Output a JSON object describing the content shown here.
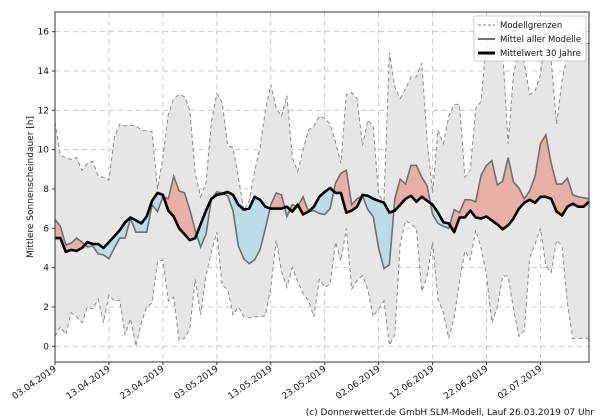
{
  "chart_data": {
    "type": "area",
    "title": "",
    "ylabel": "Mittlere Sonnenscheindauer [h]",
    "xlabel": "",
    "ylim": [
      -0.8,
      17
    ],
    "xlim_days": [
      0,
      99
    ],
    "grid": true,
    "legend_placement": "top-right",
    "y_ticks": [
      0,
      2,
      4,
      6,
      8,
      10,
      12,
      14,
      16
    ],
    "x_tick_days": [
      0,
      10,
      20,
      30,
      40,
      50,
      60,
      70,
      80,
      90
    ],
    "x_tick_labels": [
      "03.04.2019",
      "13.04.2019",
      "23.04.2019",
      "03.05.2019",
      "13.05.2019",
      "23.05.2019",
      "02.06.2019",
      "12.06.2019",
      "22.06.2019",
      "02.07.2019"
    ],
    "x_start": "03.04.2019",
    "x_unit": "days",
    "legend": [
      "Modellgrenzen",
      "Mittel aller Modelle",
      "Mittelwert 30 Jahre"
    ],
    "colors": {
      "above": "#e8b0a4",
      "below": "#bcdde8",
      "band": "#e6e6e6",
      "model": "#707070",
      "climate": "#000000",
      "bounds": "#8a8a8a"
    },
    "series": [
      {
        "name": "Modellgrenzen oben",
        "values": [
          11.4,
          9.7,
          9.6,
          9.5,
          9.6,
          8.95,
          9.3,
          9.4,
          8.65,
          8.6,
          8.45,
          10.6,
          11.3,
          11.2,
          11.25,
          11.2,
          11.0,
          10.95,
          10.9,
          8.0,
          9.6,
          11.8,
          12.6,
          12.8,
          12.7,
          12.0,
          8.8,
          7.6,
          8.3,
          11.4,
          12.85,
          12.4,
          10.2,
          10.1,
          8.6,
          6.9,
          7.4,
          8.9,
          10.1,
          12.0,
          13.3,
          12.1,
          11.7,
          12.75,
          9.6,
          8.9,
          10.0,
          11.0,
          11.2,
          11.7,
          11.6,
          11.3,
          10.4,
          9.3,
          12.8,
          12.9,
          12.6,
          10.2,
          11.5,
          11.2,
          7.7,
          7.4,
          14.95,
          13.2,
          12.6,
          13.1,
          13.7,
          13.7,
          14.4,
          10.4,
          7.8,
          11.0,
          10.3,
          11.7,
          12.3,
          12.3,
          8.6,
          8.95,
          12.1,
          12.45,
          15.6,
          16.5,
          16.5,
          15.0,
          10.3,
          13.8,
          15.2,
          14.4,
          12.8,
          13.0,
          13.8,
          16.0,
          14.5,
          11.3,
          13.5,
          14.8,
          15.5,
          15.4,
          15.4,
          15.4
        ]
      },
      {
        "name": "Modellgrenzen unten",
        "values": [
          0.5,
          1.0,
          0.6,
          1.7,
          1.5,
          1.2,
          2.0,
          1.9,
          2.4,
          1.2,
          2.6,
          2.3,
          2.35,
          0.6,
          1.4,
          0.0,
          1.2,
          2.0,
          2.2,
          4.3,
          4.4,
          2.3,
          2.5,
          0.3,
          0.4,
          0.9,
          3.4,
          1.6,
          3.6,
          4.8,
          5.8,
          3.1,
          2.9,
          1.6,
          2.0,
          1.5,
          1.45,
          1.5,
          1.5,
          1.55,
          3.0,
          5.4,
          3.8,
          3.0,
          4.0,
          3.3,
          2.7,
          2.3,
          1.5,
          3.4,
          3.0,
          3.15,
          5.3,
          4.35,
          6.0,
          2.9,
          3.35,
          3.6,
          2.9,
          1.5,
          1.9,
          2.3,
          0.05,
          0.6,
          5.2,
          6.4,
          6.2,
          6.0,
          2.8,
          3.6,
          5.3,
          2.4,
          1.7,
          0.4,
          1.5,
          3.3,
          4.85,
          4.4,
          5.9,
          5.0,
          3.6,
          1.2,
          2.0,
          3.6,
          3.55,
          1.9,
          0.5,
          0.8,
          4.5,
          5.2,
          6.0,
          4.1,
          3.75,
          5.4,
          5.1,
          2.2,
          0.4,
          0.4,
          0.4,
          0.4
        ]
      },
      {
        "name": "Mittel aller Modelle",
        "values": [
          6.45,
          6.1,
          5.15,
          5.25,
          5.5,
          5.3,
          5.05,
          5.1,
          4.7,
          4.65,
          4.45,
          5.0,
          5.5,
          5.5,
          6.5,
          5.8,
          5.8,
          5.8,
          7.2,
          6.85,
          7.6,
          7.5,
          8.65,
          7.9,
          7.8,
          6.95,
          5.9,
          5.05,
          5.7,
          7.5,
          7.85,
          7.8,
          7.65,
          6.9,
          5.1,
          4.45,
          4.2,
          4.4,
          4.9,
          6.0,
          7.2,
          7.8,
          7.7,
          6.6,
          7.2,
          7.1,
          7.6,
          6.85,
          6.9,
          6.75,
          6.7,
          7.0,
          8.3,
          8.8,
          8.95,
          7.2,
          7.5,
          7.65,
          6.95,
          6.6,
          5.0,
          3.95,
          4.15,
          7.5,
          8.5,
          8.25,
          9.2,
          9.2,
          8.6,
          8.15,
          6.7,
          6.25,
          6.1,
          6.0,
          6.95,
          6.8,
          7.45,
          7.45,
          7.35,
          8.7,
          9.2,
          9.45,
          8.2,
          8.4,
          9.6,
          8.35,
          8.05,
          7.5,
          7.9,
          8.65,
          10.3,
          10.75,
          9.3,
          8.25,
          8.25,
          8.55,
          7.7,
          7.6,
          7.55,
          7.5
        ]
      },
      {
        "name": "Mittelwert 30 Jahre",
        "values": [
          5.5,
          5.5,
          4.8,
          4.9,
          4.85,
          5.0,
          5.3,
          5.2,
          5.2,
          5.0,
          5.3,
          5.6,
          5.9,
          6.3,
          6.55,
          6.4,
          6.25,
          6.6,
          7.4,
          7.8,
          7.7,
          6.9,
          6.6,
          6.0,
          5.7,
          5.4,
          5.5,
          6.2,
          6.9,
          7.5,
          7.7,
          7.75,
          7.85,
          7.7,
          7.2,
          6.95,
          7.0,
          7.6,
          7.45,
          7.1,
          7.0,
          7.0,
          7.0,
          7.1,
          6.85,
          7.2,
          6.7,
          6.85,
          7.1,
          7.6,
          7.85,
          8.05,
          7.8,
          7.8,
          6.8,
          6.9,
          7.1,
          7.7,
          7.65,
          7.5,
          7.4,
          7.3,
          6.8,
          6.9,
          7.2,
          7.5,
          7.65,
          7.35,
          7.6,
          7.4,
          7.2,
          6.8,
          6.3,
          6.25,
          5.8,
          6.55,
          6.55,
          6.9,
          6.55,
          6.5,
          6.6,
          6.4,
          6.2,
          5.95,
          6.15,
          6.5,
          7.0,
          7.3,
          7.45,
          7.3,
          7.6,
          7.6,
          7.5,
          6.85,
          6.65,
          7.1,
          7.25,
          7.1,
          7.1,
          7.35
        ]
      }
    ]
  },
  "footer": "(c) Donnerwetter.de GmbH SLM-Modell, Lauf 26.03.2019 07 Uhr"
}
